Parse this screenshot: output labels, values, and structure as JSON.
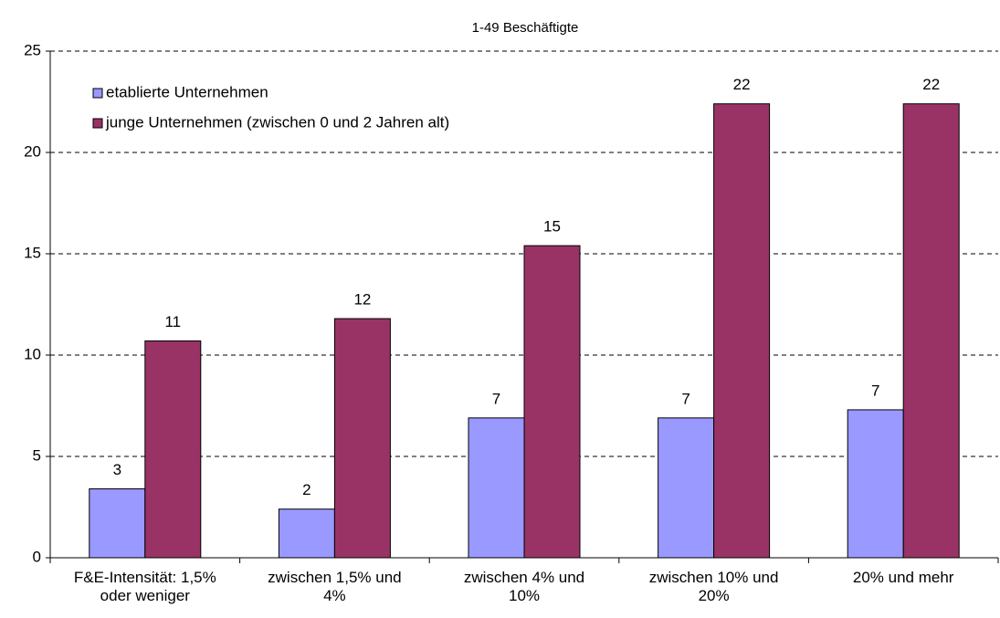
{
  "chart_data": {
    "type": "bar",
    "title": "1-49 Beschäftigte",
    "categories": [
      "F&E-Intensität: 1,5% oder weniger",
      "zwischen 1,5% und 4%",
      "zwischen 4% und 10%",
      "zwischen 10% und 20%",
      "20% und mehr"
    ],
    "series": [
      {
        "name": "etablierte Unternehmen",
        "color": "#9999ff",
        "values": [
          3.4,
          2.4,
          6.9,
          6.9,
          7.3
        ],
        "value_labels": [
          "3",
          "2",
          "7",
          "7",
          "7"
        ]
      },
      {
        "name": "junge Unternehmen (zwischen 0 und 2 Jahren alt)",
        "color": "#993366",
        "values": [
          10.7,
          11.8,
          15.4,
          22.4,
          22.4
        ],
        "value_labels": [
          "11",
          "12",
          "15",
          "22",
          "22"
        ]
      }
    ],
    "ylim": [
      0,
      25
    ],
    "yticks": [
      0,
      5,
      10,
      15,
      20,
      25
    ],
    "grid": true,
    "legend": "top-left"
  }
}
